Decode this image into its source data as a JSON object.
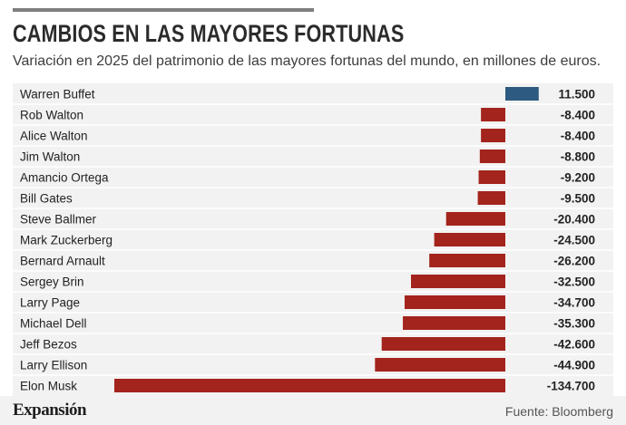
{
  "header": {
    "title": "CAMBIOS EN LAS MAYORES FORTUNAS",
    "subtitle": "Variación en 2025 del patrimonio de las mayores fortunas del mundo, en millones de euros."
  },
  "footer": {
    "brand": "Expansión",
    "source": "Fuente: Bloomberg"
  },
  "colors": {
    "positive": "#2d5a80",
    "negative": "#a3241c",
    "row_divider": "#ffffff",
    "text": "#222222"
  },
  "chart_data": {
    "type": "bar",
    "orientation": "horizontal",
    "title": "CAMBIOS EN LAS MAYORES FORTUNAS",
    "subtitle": "Variación en 2025 del patrimonio de las mayores fortunas del mundo, en millones de euros.",
    "unit": "millones de euros",
    "categories": [
      "Warren Buffet",
      "Rob Walton",
      "Alice Walton",
      "Jim Walton",
      "Amancio Ortega",
      "Bill Gates",
      "Steve Ballmer",
      "Mark Zuckerberg",
      "Bernard Arnault",
      "Sergey Brin",
      "Larry Page",
      "Michael Dell",
      "Jeff Bezos",
      "Larry Ellison",
      "Elon Musk"
    ],
    "values": [
      11500,
      -8400,
      -8400,
      -8800,
      -9200,
      -9500,
      -20400,
      -24500,
      -26200,
      -32500,
      -34700,
      -35300,
      -42600,
      -44900,
      -134700
    ],
    "value_labels": [
      "11.500",
      "-8.400",
      "-8.400",
      "-8.800",
      "-9.200",
      "-9.500",
      "-20.400",
      "-24.500",
      "-26.200",
      "-32.500",
      "-34.700",
      "-35.300",
      "-42.600",
      "-44.900",
      "-134.700"
    ],
    "xlim": [
      -134700,
      11500
    ],
    "grid": false,
    "legend": "none"
  }
}
